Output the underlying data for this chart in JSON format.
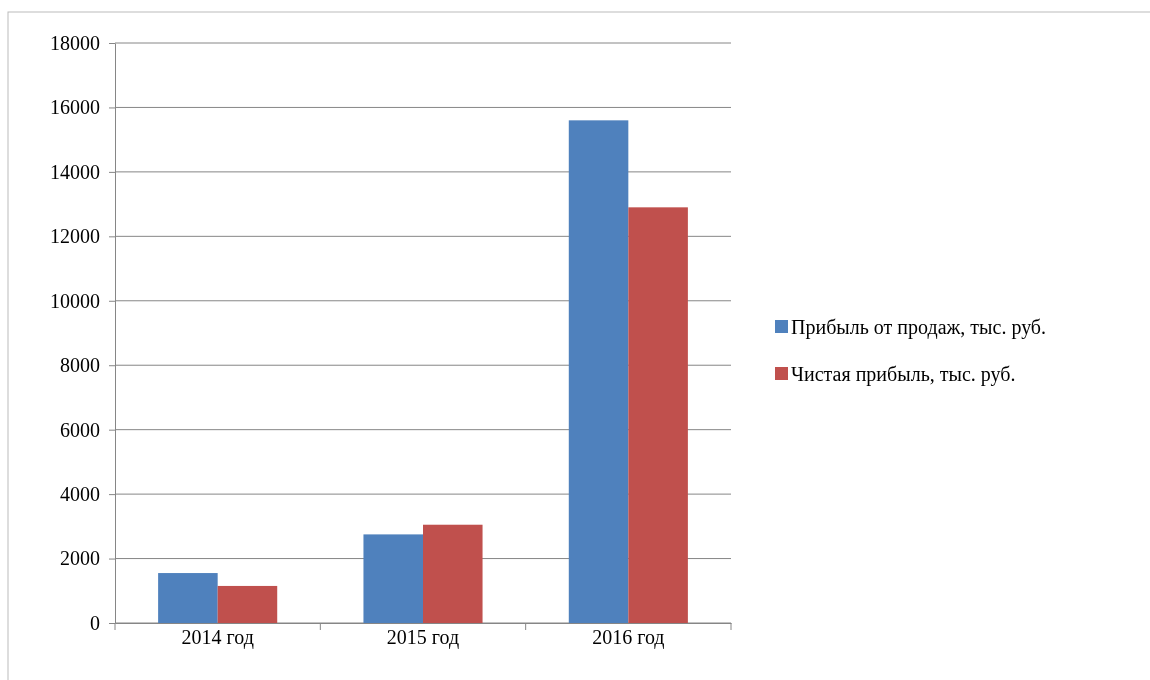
{
  "chart_data": {
    "type": "bar",
    "categories": [
      "2014 год",
      "2015 год",
      "2016 год"
    ],
    "series": [
      {
        "name": "Прибыль от продаж, тыс. руб.",
        "color": "#4f81bd",
        "values": [
          1550,
          2750,
          15600
        ]
      },
      {
        "name": "Чистая прибыль, тыс. руб.",
        "color": "#c0504d",
        "values": [
          1150,
          3050,
          12900
        ]
      }
    ],
    "ylim": [
      0,
      18000
    ],
    "yticks": [
      0,
      2000,
      4000,
      6000,
      8000,
      10000,
      12000,
      14000,
      16000,
      18000
    ],
    "grid": "y",
    "legend": "right"
  }
}
